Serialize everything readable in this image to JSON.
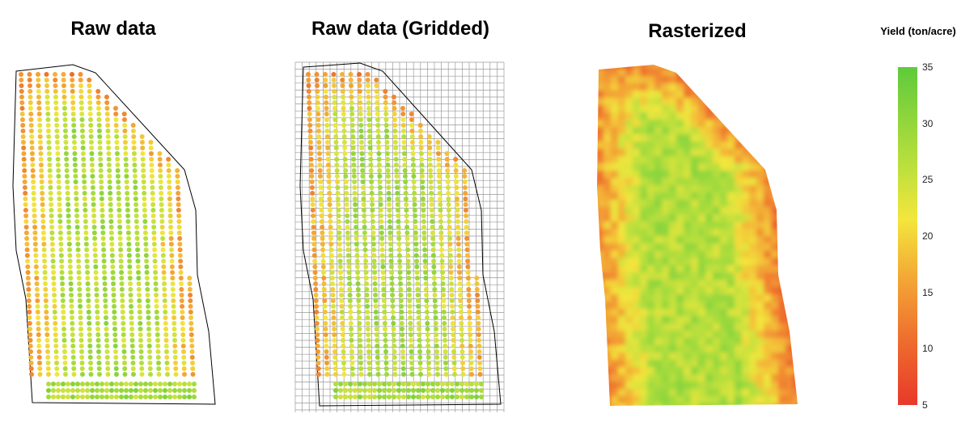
{
  "panels": {
    "raw": {
      "title": "Raw data"
    },
    "gridded": {
      "title": "Raw data (Gridded)"
    },
    "rasterized": {
      "title": "Rasterized"
    }
  },
  "legend": {
    "title": "Yield (ton/acre)",
    "ticks": [
      "35",
      "30",
      "25",
      "20",
      "15",
      "10",
      "5"
    ],
    "min": 5,
    "max": 35,
    "colors": {
      "low": "#e8392a",
      "mid_low": "#f3a235",
      "mid": "#f3e63c",
      "high": "#5fca3b"
    }
  }
}
